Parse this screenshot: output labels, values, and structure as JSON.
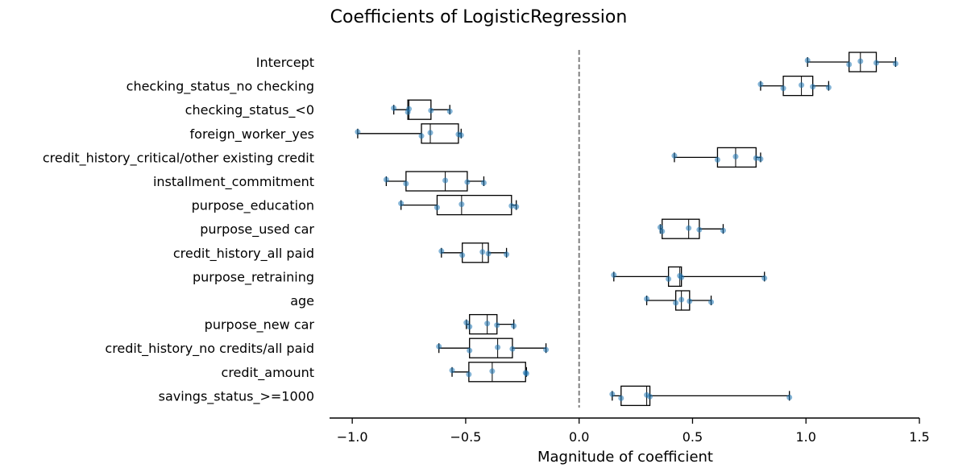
{
  "chart_data": {
    "type": "boxplot",
    "orientation": "horizontal",
    "title": "Coefficients of LogisticRegression",
    "xlabel": "Magnitude of coefficient",
    "ylabel": "",
    "xlim": [
      -1.1,
      1.5
    ],
    "xticks": [
      -1.0,
      -0.5,
      0.0,
      0.5,
      1.0,
      1.5
    ],
    "xtick_labels": [
      "−1.0",
      "−0.5",
      "0.0",
      "0.5",
      "1.0",
      "1.5"
    ],
    "reference_line": {
      "x": 0.0,
      "style": "dashed",
      "color": "#808080"
    },
    "grid": false,
    "point_color": "#1f77b4",
    "categories": [
      "Intercept",
      "checking_status_no checking",
      "checking_status_<0",
      "foreign_worker_yes",
      "credit_history_critical/other existing credit",
      "installment_commitment",
      "purpose_education",
      "purpose_used car",
      "credit_history_all paid",
      "purpose_retraining",
      "age",
      "purpose_new car",
      "credit_history_no credits/all paid",
      "credit_amount",
      "savings_status_>=1000"
    ],
    "series": [
      {
        "values": [
          [
            1.007,
            1.19,
            1.24,
            1.31,
            1.395
          ],
          [
            0.8,
            0.9,
            0.98,
            1.03,
            1.1
          ],
          [
            -0.817,
            -0.755,
            -0.75,
            -0.653,
            -0.57
          ],
          [
            -0.976,
            -0.695,
            -0.656,
            -0.532,
            -0.52
          ],
          [
            0.42,
            0.61,
            0.69,
            0.78,
            0.8
          ],
          [
            -0.85,
            -0.763,
            -0.59,
            -0.493,
            -0.42
          ],
          [
            -0.785,
            -0.626,
            -0.518,
            -0.298,
            -0.277
          ],
          [
            0.358,
            0.366,
            0.483,
            0.53,
            0.635
          ],
          [
            -0.607,
            -0.515,
            -0.426,
            -0.4,
            -0.32
          ],
          [
            0.153,
            0.394,
            0.444,
            0.451,
            0.817
          ],
          [
            0.298,
            0.426,
            0.451,
            0.487,
            0.582
          ],
          [
            -0.497,
            -0.483,
            -0.405,
            -0.362,
            -0.288
          ],
          [
            -0.618,
            -0.483,
            -0.359,
            -0.294,
            -0.146
          ],
          [
            -0.56,
            -0.486,
            -0.383,
            -0.236,
            -0.232
          ],
          [
            0.146,
            0.185,
            0.298,
            0.312,
            0.927
          ]
        ]
      }
    ]
  }
}
